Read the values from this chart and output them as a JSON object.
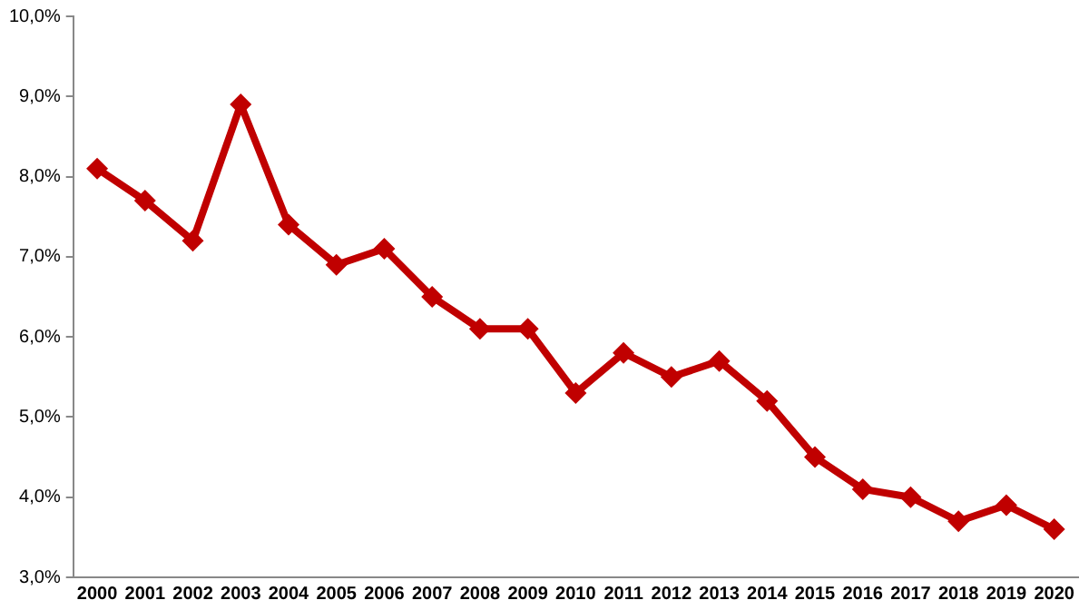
{
  "chart_data": {
    "type": "line",
    "categories": [
      "2000",
      "2001",
      "2002",
      "2003",
      "2004",
      "2005",
      "2006",
      "2007",
      "2008",
      "2009",
      "2010",
      "2011",
      "2012",
      "2013",
      "2014",
      "2015",
      "2016",
      "2017",
      "2018",
      "2019",
      "2020"
    ],
    "series": [
      {
        "color": "#c00000",
        "values": [
          8.1,
          7.7,
          7.2,
          8.9,
          7.4,
          6.9,
          7.1,
          6.5,
          6.1,
          6.1,
          5.3,
          5.8,
          5.5,
          5.7,
          5.2,
          4.5,
          4.1,
          4.0,
          3.7,
          3.9,
          3.6
        ]
      }
    ],
    "ylim": [
      3,
      10
    ],
    "yticks": [
      {
        "value": 3,
        "label": "3,0%"
      },
      {
        "value": 4,
        "label": "4,0%"
      },
      {
        "value": 5,
        "label": "5,0%"
      },
      {
        "value": 6,
        "label": "6,0%"
      },
      {
        "value": 7,
        "label": "7,0%"
      },
      {
        "value": 8,
        "label": "8,0%"
      },
      {
        "value": 9,
        "label": "9,0%"
      },
      {
        "value": 10,
        "label": "10,0%"
      }
    ],
    "grid": false,
    "legend": false,
    "marker": "diamond",
    "line_style": "solid"
  }
}
